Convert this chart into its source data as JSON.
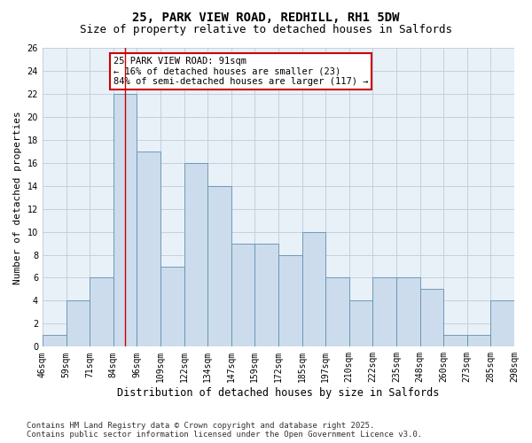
{
  "title": "25, PARK VIEW ROAD, REDHILL, RH1 5DW",
  "subtitle": "Size of property relative to detached houses in Salfords",
  "xlabel": "Distribution of detached houses by size in Salfords",
  "ylabel": "Number of detached properties",
  "bar_values": [
    1,
    4,
    6,
    22,
    17,
    7,
    16,
    14,
    9,
    9,
    8,
    10,
    6,
    4,
    6,
    6,
    5,
    1,
    1,
    4
  ],
  "x_tick_labels": [
    "46sqm",
    "59sqm",
    "71sqm",
    "84sqm",
    "96sqm",
    "109sqm",
    "122sqm",
    "134sqm",
    "147sqm",
    "159sqm",
    "172sqm",
    "185sqm",
    "197sqm",
    "210sqm",
    "222sqm",
    "235sqm",
    "248sqm",
    "260sqm",
    "273sqm",
    "285sqm",
    "298sqm"
  ],
  "bar_color": "#ccdcec",
  "bar_edge_color": "#6090b0",
  "property_line_x": 3.5,
  "ylim": [
    0,
    26
  ],
  "yticks": [
    0,
    2,
    4,
    6,
    8,
    10,
    12,
    14,
    16,
    18,
    20,
    22,
    24,
    26
  ],
  "annotation_text": "25 PARK VIEW ROAD: 91sqm\n← 16% of detached houses are smaller (23)\n84% of semi-detached houses are larger (117) →",
  "annotation_box_color": "#ffffff",
  "annotation_box_edge_color": "#cc0000",
  "footer_text": "Contains HM Land Registry data © Crown copyright and database right 2025.\nContains public sector information licensed under the Open Government Licence v3.0.",
  "grid_color": "#c0ccd8",
  "background_color": "#e8f0f8",
  "title_fontsize": 10,
  "subtitle_fontsize": 9,
  "tick_fontsize": 7,
  "ylabel_fontsize": 8,
  "xlabel_fontsize": 8.5,
  "footer_fontsize": 6.5,
  "annotation_fontsize": 7.5
}
